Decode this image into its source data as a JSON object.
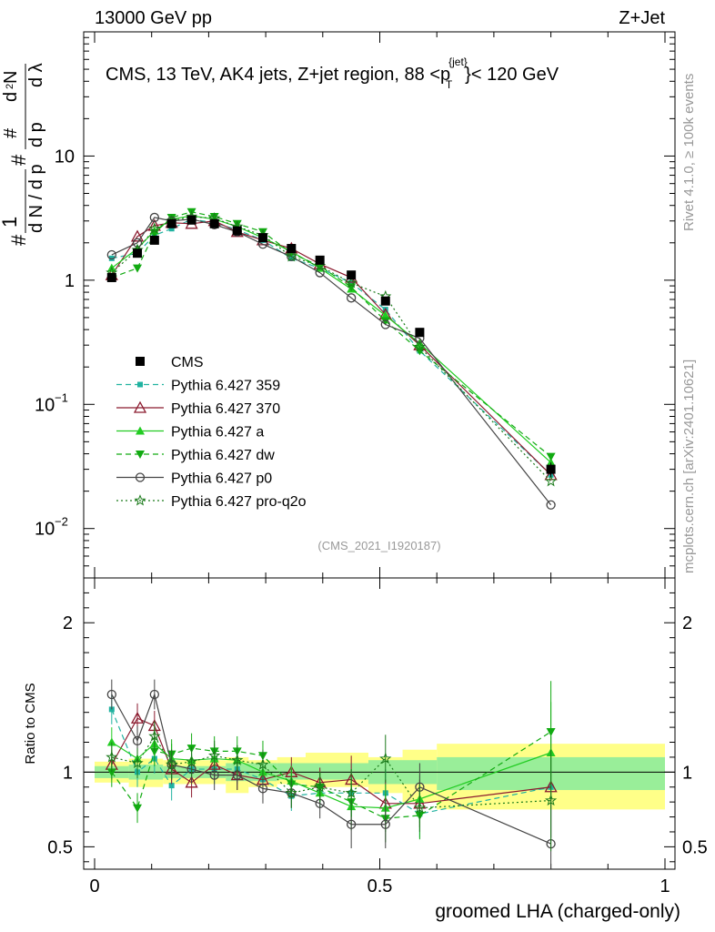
{
  "header": {
    "left": "13000 GeV pp",
    "right": "Z+Jet"
  },
  "title": {
    "main": "CMS, 13 TeV, AK4 jets, Z+jet region, 88 <p",
    "sup": "{jet}",
    "sub": "T",
    "tail": "}< 120 GeV"
  },
  "side": {
    "rivet": "Rivet 4.1.0, ≥ 100k events",
    "mcplots": "mcplots.cern.ch [arXiv:2401.10621]"
  },
  "analysis_id": "(CMS_2021_I1920187)",
  "chart_data": {
    "type": "line",
    "xlabel": "groomed LHA (charged-only)",
    "ylabel_main": "1/N dN/dp_T d²N/dp_T dλ",
    "ylabel_ratio": "Ratio to CMS",
    "xlim": [
      0,
      1
    ],
    "ylim_main": [
      0.004,
      100
    ],
    "ylim_ratio": [
      0.35,
      2.3
    ],
    "yscale_main": "log",
    "x_ticks": [
      "0",
      "0.5",
      "1"
    ],
    "y_ticks_main": [
      "1",
      "10"
    ],
    "y_ticks_main_exp": [
      "10",
      "10"
    ],
    "y_ticks_main_exp_pow": [
      "−1",
      "−2"
    ],
    "y_ticks_ratio": [
      "0.5",
      "1",
      "2"
    ],
    "x": [
      0.03,
      0.075,
      0.105,
      0.135,
      0.17,
      0.21,
      0.25,
      0.295,
      0.345,
      0.395,
      0.45,
      0.51,
      0.57,
      0.8
    ],
    "ratio_band_inner": [
      {
        "x0": 0.0,
        "x1": 0.06,
        "lo": 0.96,
        "hi": 1.04
      },
      {
        "x0": 0.06,
        "x1": 0.12,
        "lo": 0.95,
        "hi": 1.05
      },
      {
        "x0": 0.12,
        "x1": 0.23,
        "lo": 0.96,
        "hi": 1.04
      },
      {
        "x0": 0.23,
        "x1": 0.32,
        "lo": 0.94,
        "hi": 1.06
      },
      {
        "x0": 0.32,
        "x1": 0.48,
        "lo": 0.95,
        "hi": 1.06
      },
      {
        "x0": 0.48,
        "x1": 0.6,
        "lo": 0.92,
        "hi": 1.08
      },
      {
        "x0": 0.6,
        "x1": 1.0,
        "lo": 0.88,
        "hi": 1.1
      }
    ],
    "ratio_band_outer": [
      {
        "x0": 0.0,
        "x1": 0.06,
        "lo": 0.93,
        "hi": 1.07
      },
      {
        "x0": 0.06,
        "x1": 0.12,
        "lo": 0.9,
        "hi": 1.09
      },
      {
        "x0": 0.12,
        "x1": 0.23,
        "lo": 0.92,
        "hi": 1.08
      },
      {
        "x0": 0.23,
        "x1": 0.27,
        "lo": 0.86,
        "hi": 1.1
      },
      {
        "x0": 0.27,
        "x1": 0.32,
        "lo": 0.9,
        "hi": 1.08
      },
      {
        "x0": 0.32,
        "x1": 0.37,
        "lo": 0.92,
        "hi": 1.1
      },
      {
        "x0": 0.37,
        "x1": 0.48,
        "lo": 0.9,
        "hi": 1.13
      },
      {
        "x0": 0.48,
        "x1": 0.54,
        "lo": 0.86,
        "hi": 1.1
      },
      {
        "x0": 0.54,
        "x1": 0.6,
        "lo": 0.8,
        "hi": 1.15
      },
      {
        "x0": 0.6,
        "x1": 1.0,
        "lo": 0.75,
        "hi": 1.19
      }
    ],
    "series": [
      {
        "name": "CMS",
        "color": "#000000",
        "marker": "square",
        "dash": "none",
        "values": [
          1.05,
          1.65,
          2.1,
          2.85,
          3.05,
          2.85,
          2.5,
          2.2,
          1.8,
          1.45,
          1.1,
          0.68,
          0.38,
          0.03
        ],
        "err": [
          0.06,
          0.1,
          0.12,
          0.15,
          0.15,
          0.14,
          0.14,
          0.12,
          0.1,
          0.08,
          0.07,
          0.05,
          0.03,
          0.004
        ]
      },
      {
        "name": "Pythia 6.427 359",
        "color": "#20b2a0",
        "marker": "smallsquare",
        "dash": "6,4",
        "values": [
          1.5,
          1.65,
          2.3,
          2.6,
          3.1,
          2.9,
          2.55,
          2.1,
          1.5,
          1.25,
          0.95,
          0.58,
          0.27,
          0.027
        ],
        "ratio": [
          1.42,
          1.0,
          1.09,
          0.91,
          1.02,
          1.02,
          1.02,
          0.95,
          0.84,
          0.86,
          0.86,
          0.86,
          0.72,
          0.9
        ]
      },
      {
        "name": "Pythia 6.427 370",
        "color": "#8b1a2e",
        "marker": "triangle-open",
        "dash": "none",
        "values": [
          1.1,
          2.25,
          2.75,
          2.9,
          2.85,
          3.0,
          2.45,
          2.1,
          1.8,
          1.35,
          1.05,
          0.53,
          0.3,
          0.027
        ],
        "ratio": [
          1.05,
          1.36,
          1.31,
          1.02,
          0.93,
          1.05,
          0.98,
          0.95,
          1.0,
          0.93,
          0.95,
          0.79,
          0.79,
          0.9
        ]
      },
      {
        "name": "Pythia 6.427 a",
        "color": "#22cc22",
        "marker": "triangle",
        "dash": "none",
        "values": [
          1.25,
          1.8,
          2.5,
          3.1,
          3.3,
          3.1,
          2.7,
          2.2,
          1.7,
          1.25,
          0.85,
          0.52,
          0.31,
          0.034
        ],
        "ratio": [
          1.2,
          1.09,
          1.19,
          1.09,
          1.08,
          1.09,
          1.08,
          1.0,
          0.94,
          0.86,
          0.77,
          0.76,
          0.82,
          1.13
        ]
      },
      {
        "name": "Pythia 6.427 dw",
        "color": "#11aa11",
        "marker": "triangle-down",
        "dash": "6,4",
        "values": [
          1.05,
          1.25,
          2.4,
          3.2,
          3.55,
          3.25,
          2.85,
          2.45,
          1.65,
          1.3,
          0.88,
          0.47,
          0.27,
          0.038
        ],
        "ratio": [
          1.0,
          0.76,
          1.14,
          1.12,
          1.16,
          1.14,
          1.14,
          1.11,
          0.92,
          0.9,
          0.8,
          0.69,
          0.71,
          1.27
        ]
      },
      {
        "name": "Pythia 6.427 p0",
        "color": "#444444",
        "marker": "circle-open",
        "dash": "none",
        "values": [
          1.6,
          2.0,
          3.2,
          3.0,
          3.1,
          2.8,
          2.45,
          1.95,
          1.55,
          1.15,
          0.72,
          0.44,
          0.34,
          0.0155
        ],
        "ratio": [
          1.52,
          1.21,
          1.52,
          1.05,
          1.02,
          0.98,
          0.98,
          0.89,
          0.86,
          0.79,
          0.65,
          0.65,
          0.9,
          0.52
        ]
      },
      {
        "name": "Pythia 6.427 pro-q2o",
        "color": "#1a7a1a",
        "marker": "star",
        "dash": "2,3",
        "values": [
          1.15,
          1.75,
          2.6,
          3.0,
          3.25,
          3.15,
          2.7,
          2.3,
          1.55,
          1.3,
          0.95,
          0.74,
          0.29,
          0.024
        ],
        "ratio": [
          1.1,
          1.06,
          1.24,
          1.05,
          1.07,
          1.11,
          1.08,
          1.05,
          0.86,
          0.9,
          0.86,
          1.09,
          0.76,
          0.81
        ]
      }
    ]
  }
}
